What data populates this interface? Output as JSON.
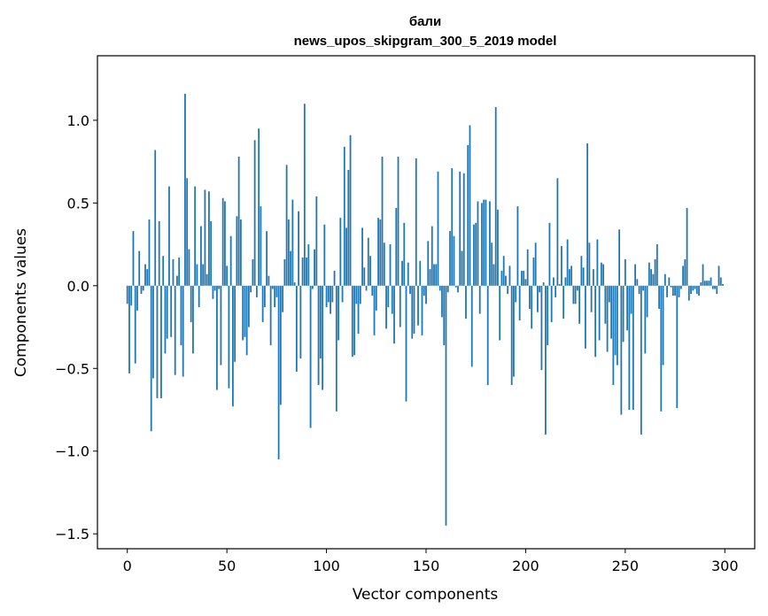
{
  "chart_data": {
    "type": "bar",
    "title": "бали",
    "subtitle": "news_upos_skipgram_300_5_2019 model",
    "xlabel": "Vector components",
    "ylabel": "Components values",
    "xlim": [
      -15,
      315
    ],
    "ylim": [
      -1.59,
      1.39
    ],
    "xticks": [
      0,
      50,
      100,
      150,
      200,
      250,
      300
    ],
    "yticks": [
      -1.5,
      -1.0,
      -0.5,
      0.0,
      0.5,
      1.0
    ],
    "ytick_labels": [
      "−1.5",
      "−1.0",
      "−0.5",
      "0.0",
      "0.5",
      "1.0"
    ],
    "grid": false,
    "bar_color": "#1f77b4",
    "values": [
      -0.11,
      -0.53,
      -0.12,
      0.33,
      -0.47,
      -0.15,
      0.21,
      -0.05,
      -0.03,
      0.13,
      0.1,
      0.4,
      -0.88,
      -0.56,
      0.82,
      -0.68,
      0.39,
      -0.68,
      0.18,
      -0.41,
      -0.32,
      0.6,
      -0.31,
      0.16,
      -0.54,
      0.06,
      0.17,
      -0.36,
      -0.55,
      1.16,
      0.65,
      0.22,
      -0.22,
      -0.41,
      0.6,
      0.13,
      -0.13,
      0.36,
      0.13,
      0.58,
      0.07,
      0.57,
      0.39,
      -0.08,
      -0.03,
      -0.63,
      -0.02,
      -0.48,
      0.53,
      0.51,
      0.12,
      -0.62,
      0.3,
      -0.73,
      -0.46,
      0.42,
      0.78,
      0.4,
      -0.33,
      -0.31,
      -0.42,
      -0.25,
      -0.04,
      0.16,
      0.88,
      -0.07,
      0.95,
      0.48,
      -0.22,
      -0.13,
      0.33,
      0.06,
      -0.36,
      -0.02,
      -0.13,
      -0.07,
      -1.05,
      -0.72,
      -0.16,
      0.16,
      0.73,
      0.4,
      0.21,
      0.52,
      0.02,
      -0.52,
      0.45,
      -0.44,
      0.17,
      1.1,
      0.17,
      0.25,
      -0.86,
      -0.02,
      0.22,
      0.54,
      -0.6,
      -0.44,
      -0.63,
      0.37,
      -0.13,
      -0.1,
      -0.17,
      -0.1,
      0.09,
      -0.76,
      -0.33,
      0.41,
      -0.1,
      0.84,
      0.35,
      0.7,
      0.91,
      -0.43,
      -0.42,
      -0.11,
      -0.29,
      -0.11,
      0.35,
      0.11,
      -0.03,
      0.29,
      0.18,
      -0.06,
      -0.3,
      -0.15,
      0.41,
      0.4,
      0.78,
      0.26,
      -0.26,
      -0.13,
      0.25,
      -0.17,
      -0.35,
      0.47,
      0.78,
      -0.25,
      0.15,
      0.38,
      -0.7,
      0.14,
      -0.05,
      -0.32,
      -0.29,
      0.77,
      -0.24,
      0.15,
      -0.3,
      -0.06,
      -0.11,
      0.27,
      0.1,
      0.36,
      0.13,
      0.13,
      0.69,
      -0.03,
      -0.19,
      -0.36,
      -1.45,
      -0.04,
      0.33,
      0.71,
      0.3,
      -0.01,
      -0.04,
      0.69,
      0.21,
      0.68,
      -0.2,
      0.85,
      0.97,
      -0.49,
      0.37,
      0.38,
      0.51,
      -0.17,
      0.5,
      0.52,
      0.52,
      -0.6,
      0.51,
      0.26,
      0.13,
      1.08,
      0.46,
      -0.33,
      0.09,
      0.18,
      0.06,
      -0.05,
      0.12,
      -0.6,
      -0.55,
      -0.1,
      0.48,
      -0.21,
      0.09,
      0.09,
      0.04,
      0.22,
      -0.14,
      -0.26,
      0.17,
      0.26,
      -0.16,
      -0.04,
      -0.51,
      0.02,
      -0.9,
      -0.36,
      0.38,
      -0.22,
      0.05,
      -0.07,
      0.65,
      0.01,
      0.24,
      -0.2,
      0.05,
      0.28,
      0.1,
      0.12,
      -0.11,
      -0.11,
      -0.03,
      -0.23,
      0.18,
      0.11,
      -0.38,
      0.86,
      0.26,
      -0.16,
      0.1,
      -0.43,
      0.28,
      -0.33,
      0.14,
      0.13,
      -0.23,
      -0.4,
      -0.1,
      -0.32,
      -0.6,
      -0.42,
      -0.48,
      0.34,
      -0.78,
      -0.34,
      0.16,
      -0.27,
      -0.75,
      -0.17,
      -0.75,
      0.13,
      0.04,
      -0.05,
      -0.9,
      -0.03,
      -0.41,
      -0.19,
      0.14,
      0.1,
      0.07,
      0.16,
      0.25,
      -0.14,
      -0.76,
      -0.48,
      0.07,
      -0.07,
      0.05,
      -0.01,
      -0.06,
      -0.06,
      -0.74,
      -0.07,
      -0.02,
      0.12,
      0.16,
      0.47,
      -0.09,
      -0.05,
      -0.03,
      -0.02,
      -0.05,
      -0.06,
      0.02,
      0.13,
      0.03,
      0.03,
      0.03,
      0.05,
      -0.02,
      -0.02,
      -0.05,
      0.12,
      0.05,
      0.01
    ]
  }
}
